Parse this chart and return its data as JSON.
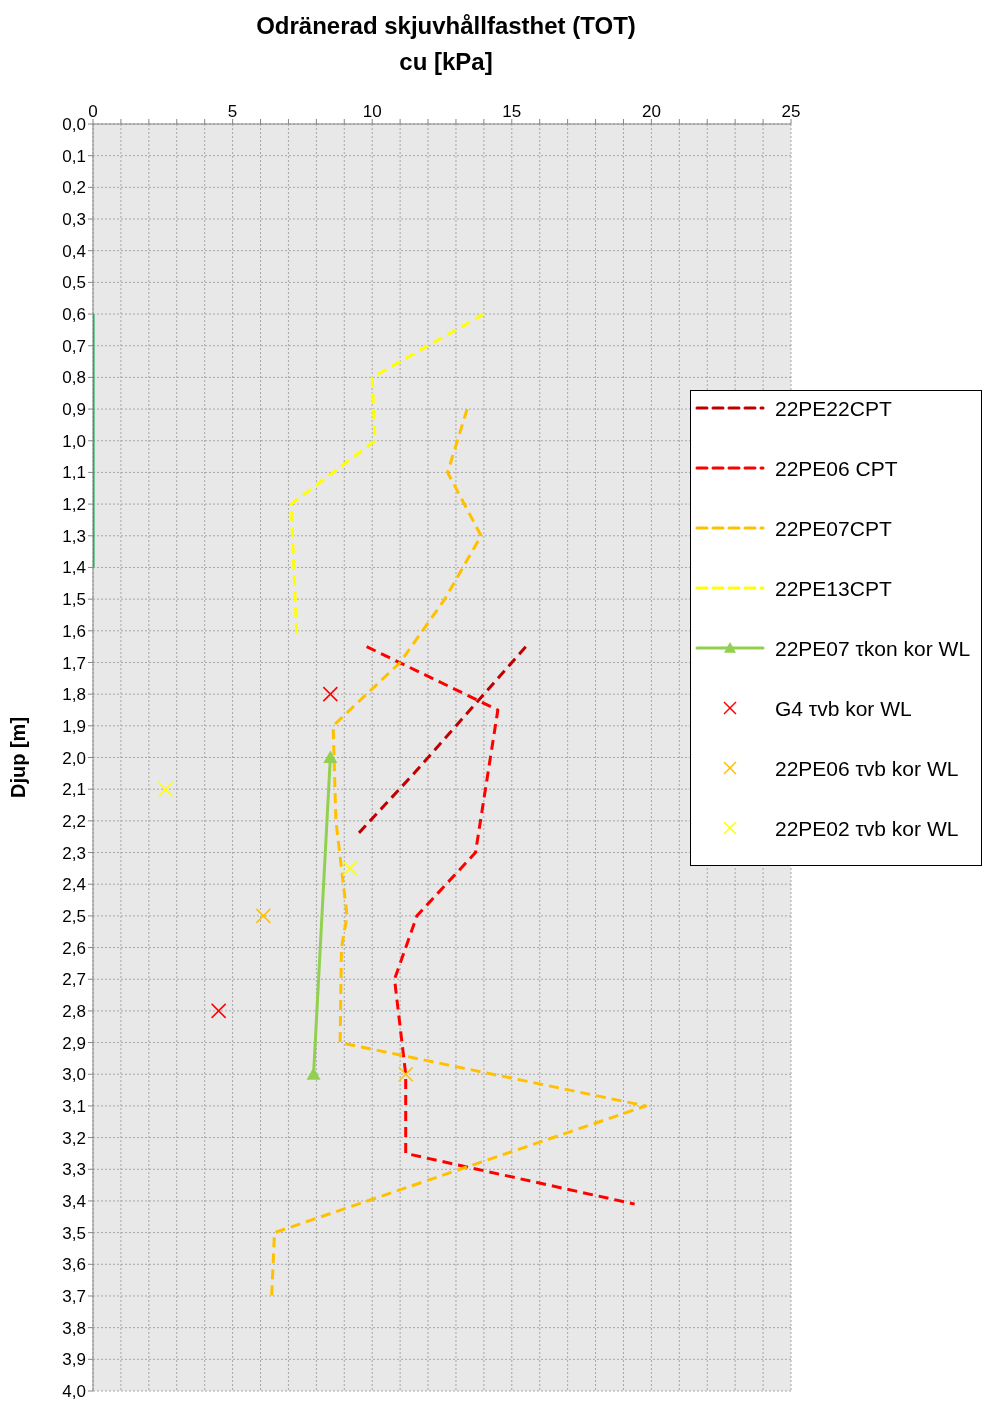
{
  "chart_data": {
    "type": "line",
    "title": "Odränerad skjuvhållfasthet (TOT)",
    "xlabel": "cu [kPa]",
    "ylabel": "Djup [m]",
    "xlim": [
      0,
      25
    ],
    "xticks": [
      0,
      {
        "value": 1,
        "label": null
      },
      {
        "value": 2,
        "label": null
      },
      {
        "value": 3,
        "label": null
      },
      {
        "value": 4,
        "label": null
      },
      5,
      {
        "value": 6,
        "label": null
      },
      {
        "value": 7,
        "label": null
      },
      {
        "value": 8,
        "label": null
      },
      {
        "value": 9,
        "label": null
      },
      10,
      {
        "value": 11,
        "label": null
      },
      {
        "value": 12,
        "label": null
      },
      {
        "value": 13,
        "label": null
      },
      {
        "value": 14,
        "label": null
      },
      15,
      {
        "value": 16,
        "label": null
      },
      {
        "value": 17,
        "label": null
      },
      {
        "value": 18,
        "label": null
      },
      {
        "value": 19,
        "label": null
      },
      20,
      {
        "value": 21,
        "label": null
      },
      {
        "value": 22,
        "label": null
      },
      {
        "value": 23,
        "label": null
      },
      {
        "value": 24,
        "label": null
      },
      25
    ],
    "ylim": [
      4.0,
      0
    ],
    "yticks": [
      {
        "value": 0,
        "label": "0,0"
      },
      {
        "value": 0.1,
        "label": "0,1"
      },
      {
        "value": 0.2,
        "label": "0,2"
      },
      {
        "value": 0.3,
        "label": "0,3"
      },
      {
        "value": 0.4,
        "label": "0,4"
      },
      {
        "value": 0.5,
        "label": "0,5"
      },
      {
        "value": 0.6,
        "label": "0,6"
      },
      {
        "value": 0.7,
        "label": "0,7"
      },
      {
        "value": 0.8,
        "label": "0,8"
      },
      {
        "value": 0.9,
        "label": "0,9"
      },
      {
        "value": 1.0,
        "label": "1,0"
      },
      {
        "value": 1.1,
        "label": "1,1"
      },
      {
        "value": 1.2,
        "label": "1,2"
      },
      {
        "value": 1.3,
        "label": "1,3"
      },
      {
        "value": 1.4,
        "label": "1,4"
      },
      {
        "value": 1.5,
        "label": "1,5"
      },
      {
        "value": 1.6,
        "label": "1,6"
      },
      {
        "value": 1.7,
        "label": "1,7"
      },
      {
        "value": 1.8,
        "label": "1,8"
      },
      {
        "value": 1.9,
        "label": "1,9"
      },
      {
        "value": 2.0,
        "label": "2,0"
      },
      {
        "value": 2.1,
        "label": "2,1"
      },
      {
        "value": 2.2,
        "label": "2,2"
      },
      {
        "value": 2.3,
        "label": "2,3"
      },
      {
        "value": 2.4,
        "label": "2,4"
      },
      {
        "value": 2.5,
        "label": "2,5"
      },
      {
        "value": 2.6,
        "label": "2,6"
      },
      {
        "value": 2.7,
        "label": "2,7"
      },
      {
        "value": 2.8,
        "label": "2,8"
      },
      {
        "value": 2.9,
        "label": "2,9"
      },
      {
        "value": 3.0,
        "label": "3,0"
      },
      {
        "value": 3.1,
        "label": "3,1"
      },
      {
        "value": 3.2,
        "label": "3,2"
      },
      {
        "value": 3.3,
        "label": "3,3"
      },
      {
        "value": 3.4,
        "label": "3,4"
      },
      {
        "value": 3.5,
        "label": "3,5"
      },
      {
        "value": 3.6,
        "label": "3,6"
      },
      {
        "value": 3.7,
        "label": "3,7"
      },
      {
        "value": 3.8,
        "label": "3,8"
      },
      {
        "value": 3.9,
        "label": "3,9"
      },
      {
        "value": 4.0,
        "label": "4,0"
      }
    ],
    "grid": true,
    "legend": "right",
    "series": [
      {
        "name": "22PE22CPT",
        "color": "#c00000",
        "line_style": "dashed",
        "marker": "none",
        "x": [
          15.5,
          13.2,
          11.5,
          9.4
        ],
        "values": [
          1.65,
          1.88,
          2.05,
          2.25
        ]
      },
      {
        "name": "22PE06 CPT",
        "color": "#ff0000",
        "line_style": "dashed",
        "marker": "none",
        "x": [
          9.8,
          14.5,
          13.7,
          11.6,
          10.8,
          11.2,
          11.2,
          19.4
        ],
        "values": [
          1.65,
          1.85,
          2.3,
          2.5,
          2.7,
          3.0,
          3.25,
          3.41
        ]
      },
      {
        "name": "22PE07CPT",
        "color": "#ffc000",
        "line_style": "dashed",
        "marker": "none",
        "x": [
          13.4,
          12.7,
          13.9,
          12.6,
          11.0,
          8.6,
          8.7,
          9.1,
          8.9,
          8.85,
          19.8,
          6.5,
          6.4
        ],
        "values": [
          0.9,
          1.1,
          1.3,
          1.5,
          1.7,
          1.9,
          2.2,
          2.5,
          2.6,
          2.9,
          3.1,
          3.5,
          3.7
        ]
      },
      {
        "name": "22PE13CPT",
        "color": "#ffff00",
        "line_style": "dashed",
        "marker": "none",
        "x": [
          14.0,
          10.0,
          10.1,
          7.1,
          7.3
        ],
        "values": [
          0.6,
          0.8,
          1.0,
          1.2,
          1.62
        ]
      },
      {
        "name": "22PE07 τkon kor WL",
        "color": "#92d050",
        "line_style": "solid",
        "marker": "triangle",
        "x": [
          8.5,
          7.9
        ],
        "values": [
          2.0,
          3.0
        ]
      },
      {
        "name": "G4 τvb kor WL",
        "type": "scatter",
        "color": "#ff0000",
        "marker": "cross",
        "x": [
          8.5,
          4.5
        ],
        "values": [
          1.8,
          2.8
        ]
      },
      {
        "name": "22PE06 τvb kor WL",
        "type": "scatter",
        "color": "#ffc000",
        "marker": "cross",
        "x": [
          6.1,
          11.2
        ],
        "values": [
          2.5,
          3.0
        ]
      },
      {
        "name": "22PE02 τvb kor WL",
        "type": "scatter",
        "color": "#ffff00",
        "marker": "cross",
        "x": [
          2.6,
          9.2
        ],
        "values": [
          2.1,
          2.35
        ]
      },
      {
        "color": "#00b050",
        "line_style": "solid",
        "marker": "none",
        "x": [
          0,
          0
        ],
        "values": [
          0.6,
          1.4
        ]
      }
    ]
  }
}
